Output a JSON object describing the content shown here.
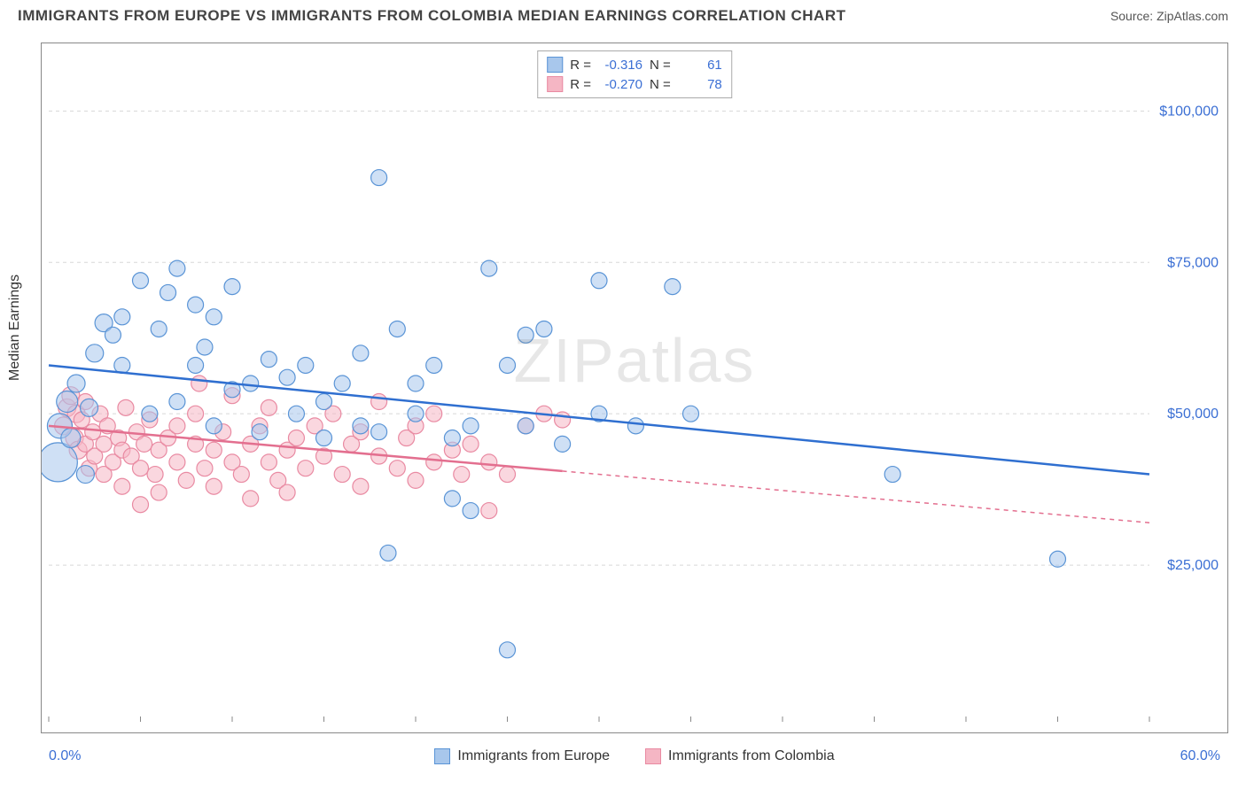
{
  "title": "IMMIGRANTS FROM EUROPE VS IMMIGRANTS FROM COLOMBIA MEDIAN EARNINGS CORRELATION CHART",
  "source_label": "Source: ",
  "source_name": "ZipAtlas.com",
  "watermark": "ZIPatlas",
  "ylabel": "Median Earnings",
  "chart": {
    "type": "scatter-with-regression",
    "xlim": [
      0,
      60
    ],
    "ylim": [
      0,
      110000
    ],
    "x_axis_min_label": "0.0%",
    "x_axis_max_label": "60.0%",
    "y_ticks": [
      25000,
      50000,
      75000,
      100000
    ],
    "y_tick_labels": [
      "$25,000",
      "$50,000",
      "$75,000",
      "$100,000"
    ],
    "x_ticks": [
      0,
      5,
      10,
      15,
      20,
      25,
      30,
      35,
      40,
      45,
      50,
      55,
      60
    ],
    "background_color": "#ffffff",
    "grid_color": "#d8d8d8",
    "border_color": "#888888",
    "tick_label_color": "#3b6fd4",
    "axis_label_color": "#333333",
    "title_fontsize": 17,
    "ylabel_fontsize": 16
  },
  "series": {
    "europe": {
      "label": "Immigrants from Europe",
      "fill_color": "#a8c7ec",
      "stroke_color": "#5a94d6",
      "line_color": "#2f6fd0",
      "fill_opacity": 0.55,
      "marker_radius_default": 9,
      "R": "-0.316",
      "N": "61",
      "regression": {
        "x1": 0,
        "y1": 58000,
        "x2": 60,
        "y2": 40000,
        "solid_until_x": 60
      },
      "points": [
        {
          "x": 0.5,
          "y": 42000,
          "r": 22
        },
        {
          "x": 0.6,
          "y": 48000,
          "r": 14
        },
        {
          "x": 1,
          "y": 52000,
          "r": 12
        },
        {
          "x": 1.2,
          "y": 46000,
          "r": 11
        },
        {
          "x": 1.5,
          "y": 55000,
          "r": 10
        },
        {
          "x": 2,
          "y": 40000,
          "r": 10
        },
        {
          "x": 2.2,
          "y": 51000,
          "r": 10
        },
        {
          "x": 2.5,
          "y": 60000,
          "r": 10
        },
        {
          "x": 3,
          "y": 65000,
          "r": 10
        },
        {
          "x": 3.5,
          "y": 63000,
          "r": 9
        },
        {
          "x": 4,
          "y": 58000,
          "r": 9
        },
        {
          "x": 4,
          "y": 66000,
          "r": 9
        },
        {
          "x": 5,
          "y": 72000,
          "r": 9
        },
        {
          "x": 5.5,
          "y": 50000,
          "r": 9
        },
        {
          "x": 6,
          "y": 64000,
          "r": 9
        },
        {
          "x": 6.5,
          "y": 70000,
          "r": 9
        },
        {
          "x": 7,
          "y": 74000,
          "r": 9
        },
        {
          "x": 7,
          "y": 52000,
          "r": 9
        },
        {
          "x": 8,
          "y": 68000,
          "r": 9
        },
        {
          "x": 8,
          "y": 58000,
          "r": 9
        },
        {
          "x": 8.5,
          "y": 61000,
          "r": 9
        },
        {
          "x": 9,
          "y": 66000,
          "r": 9
        },
        {
          "x": 9,
          "y": 48000,
          "r": 9
        },
        {
          "x": 10,
          "y": 71000,
          "r": 9
        },
        {
          "x": 10,
          "y": 54000,
          "r": 9
        },
        {
          "x": 11,
          "y": 55000,
          "r": 9
        },
        {
          "x": 11.5,
          "y": 47000,
          "r": 9
        },
        {
          "x": 12,
          "y": 59000,
          "r": 9
        },
        {
          "x": 13,
          "y": 56000,
          "r": 9
        },
        {
          "x": 13.5,
          "y": 50000,
          "r": 9
        },
        {
          "x": 14,
          "y": 58000,
          "r": 9
        },
        {
          "x": 15,
          "y": 46000,
          "r": 9
        },
        {
          "x": 15,
          "y": 52000,
          "r": 9
        },
        {
          "x": 16,
          "y": 55000,
          "r": 9
        },
        {
          "x": 17,
          "y": 48000,
          "r": 9
        },
        {
          "x": 17,
          "y": 60000,
          "r": 9
        },
        {
          "x": 18,
          "y": 89000,
          "r": 9
        },
        {
          "x": 18,
          "y": 47000,
          "r": 9
        },
        {
          "x": 18.5,
          "y": 27000,
          "r": 9
        },
        {
          "x": 19,
          "y": 64000,
          "r": 9
        },
        {
          "x": 20,
          "y": 50000,
          "r": 9
        },
        {
          "x": 20,
          "y": 55000,
          "r": 9
        },
        {
          "x": 21,
          "y": 58000,
          "r": 9
        },
        {
          "x": 22,
          "y": 46000,
          "r": 9
        },
        {
          "x": 22,
          "y": 36000,
          "r": 9
        },
        {
          "x": 23,
          "y": 48000,
          "r": 9
        },
        {
          "x": 23,
          "y": 34000,
          "r": 9
        },
        {
          "x": 24,
          "y": 74000,
          "r": 9
        },
        {
          "x": 25,
          "y": 58000,
          "r": 9
        },
        {
          "x": 25,
          "y": 11000,
          "r": 9
        },
        {
          "x": 26,
          "y": 63000,
          "r": 9
        },
        {
          "x": 26,
          "y": 48000,
          "r": 9
        },
        {
          "x": 27,
          "y": 64000,
          "r": 9
        },
        {
          "x": 28,
          "y": 45000,
          "r": 9
        },
        {
          "x": 30,
          "y": 72000,
          "r": 9
        },
        {
          "x": 30,
          "y": 50000,
          "r": 9
        },
        {
          "x": 32,
          "y": 48000,
          "r": 9
        },
        {
          "x": 34,
          "y": 71000,
          "r": 9
        },
        {
          "x": 35,
          "y": 50000,
          "r": 9
        },
        {
          "x": 46,
          "y": 40000,
          "r": 9
        },
        {
          "x": 55,
          "y": 26000,
          "r": 9
        }
      ]
    },
    "colombia": {
      "label": "Immigrants from Colombia",
      "fill_color": "#f5b6c4",
      "stroke_color": "#e98aa2",
      "line_color": "#e36f8f",
      "fill_opacity": 0.55,
      "marker_radius_default": 9,
      "R": "-0.270",
      "N": "78",
      "regression": {
        "x1": 0,
        "y1": 48000,
        "x2": 60,
        "y2": 32000,
        "solid_until_x": 28
      },
      "points": [
        {
          "x": 0.8,
          "y": 48000,
          "r": 10
        },
        {
          "x": 1,
          "y": 51000,
          "r": 10
        },
        {
          "x": 1.2,
          "y": 53000,
          "r": 10
        },
        {
          "x": 1.4,
          "y": 46000,
          "r": 10
        },
        {
          "x": 1.5,
          "y": 50000,
          "r": 10
        },
        {
          "x": 1.6,
          "y": 44000,
          "r": 10
        },
        {
          "x": 1.8,
          "y": 49000,
          "r": 9
        },
        {
          "x": 2,
          "y": 45000,
          "r": 9
        },
        {
          "x": 2,
          "y": 52000,
          "r": 9
        },
        {
          "x": 2.2,
          "y": 41000,
          "r": 9
        },
        {
          "x": 2.4,
          "y": 47000,
          "r": 9
        },
        {
          "x": 2.5,
          "y": 43000,
          "r": 9
        },
        {
          "x": 2.8,
          "y": 50000,
          "r": 9
        },
        {
          "x": 3,
          "y": 45000,
          "r": 9
        },
        {
          "x": 3,
          "y": 40000,
          "r": 9
        },
        {
          "x": 3.2,
          "y": 48000,
          "r": 9
        },
        {
          "x": 3.5,
          "y": 42000,
          "r": 9
        },
        {
          "x": 3.8,
          "y": 46000,
          "r": 9
        },
        {
          "x": 4,
          "y": 44000,
          "r": 9
        },
        {
          "x": 4,
          "y": 38000,
          "r": 9
        },
        {
          "x": 4.2,
          "y": 51000,
          "r": 9
        },
        {
          "x": 4.5,
          "y": 43000,
          "r": 9
        },
        {
          "x": 4.8,
          "y": 47000,
          "r": 9
        },
        {
          "x": 5,
          "y": 41000,
          "r": 9
        },
        {
          "x": 5,
          "y": 35000,
          "r": 9
        },
        {
          "x": 5.2,
          "y": 45000,
          "r": 9
        },
        {
          "x": 5.5,
          "y": 49000,
          "r": 9
        },
        {
          "x": 5.8,
          "y": 40000,
          "r": 9
        },
        {
          "x": 6,
          "y": 44000,
          "r": 9
        },
        {
          "x": 6,
          "y": 37000,
          "r": 9
        },
        {
          "x": 6.5,
          "y": 46000,
          "r": 9
        },
        {
          "x": 7,
          "y": 42000,
          "r": 9
        },
        {
          "x": 7,
          "y": 48000,
          "r": 9
        },
        {
          "x": 7.5,
          "y": 39000,
          "r": 9
        },
        {
          "x": 8,
          "y": 45000,
          "r": 9
        },
        {
          "x": 8,
          "y": 50000,
          "r": 9
        },
        {
          "x": 8.2,
          "y": 55000,
          "r": 9
        },
        {
          "x": 8.5,
          "y": 41000,
          "r": 9
        },
        {
          "x": 9,
          "y": 44000,
          "r": 9
        },
        {
          "x": 9,
          "y": 38000,
          "r": 9
        },
        {
          "x": 9.5,
          "y": 47000,
          "r": 9
        },
        {
          "x": 10,
          "y": 42000,
          "r": 9
        },
        {
          "x": 10,
          "y": 53000,
          "r": 9
        },
        {
          "x": 10.5,
          "y": 40000,
          "r": 9
        },
        {
          "x": 11,
          "y": 45000,
          "r": 9
        },
        {
          "x": 11,
          "y": 36000,
          "r": 9
        },
        {
          "x": 11.5,
          "y": 48000,
          "r": 9
        },
        {
          "x": 12,
          "y": 42000,
          "r": 9
        },
        {
          "x": 12,
          "y": 51000,
          "r": 9
        },
        {
          "x": 12.5,
          "y": 39000,
          "r": 9
        },
        {
          "x": 13,
          "y": 44000,
          "r": 9
        },
        {
          "x": 13,
          "y": 37000,
          "r": 9
        },
        {
          "x": 13.5,
          "y": 46000,
          "r": 9
        },
        {
          "x": 14,
          "y": 41000,
          "r": 9
        },
        {
          "x": 14.5,
          "y": 48000,
          "r": 9
        },
        {
          "x": 15,
          "y": 43000,
          "r": 9
        },
        {
          "x": 15.5,
          "y": 50000,
          "r": 9
        },
        {
          "x": 16,
          "y": 40000,
          "r": 9
        },
        {
          "x": 16.5,
          "y": 45000,
          "r": 9
        },
        {
          "x": 17,
          "y": 47000,
          "r": 9
        },
        {
          "x": 17,
          "y": 38000,
          "r": 9
        },
        {
          "x": 18,
          "y": 43000,
          "r": 9
        },
        {
          "x": 18,
          "y": 52000,
          "r": 9
        },
        {
          "x": 19,
          "y": 41000,
          "r": 9
        },
        {
          "x": 19.5,
          "y": 46000,
          "r": 9
        },
        {
          "x": 20,
          "y": 48000,
          "r": 9
        },
        {
          "x": 20,
          "y": 39000,
          "r": 9
        },
        {
          "x": 21,
          "y": 42000,
          "r": 9
        },
        {
          "x": 21,
          "y": 50000,
          "r": 9
        },
        {
          "x": 22,
          "y": 44000,
          "r": 9
        },
        {
          "x": 22.5,
          "y": 40000,
          "r": 9
        },
        {
          "x": 23,
          "y": 45000,
          "r": 9
        },
        {
          "x": 24,
          "y": 34000,
          "r": 9
        },
        {
          "x": 24,
          "y": 42000,
          "r": 9
        },
        {
          "x": 25,
          "y": 40000,
          "r": 9
        },
        {
          "x": 26,
          "y": 48000,
          "r": 9
        },
        {
          "x": 27,
          "y": 50000,
          "r": 9
        },
        {
          "x": 28,
          "y": 49000,
          "r": 9
        }
      ]
    }
  },
  "legend_labels": {
    "R": "R =",
    "N": "N ="
  }
}
